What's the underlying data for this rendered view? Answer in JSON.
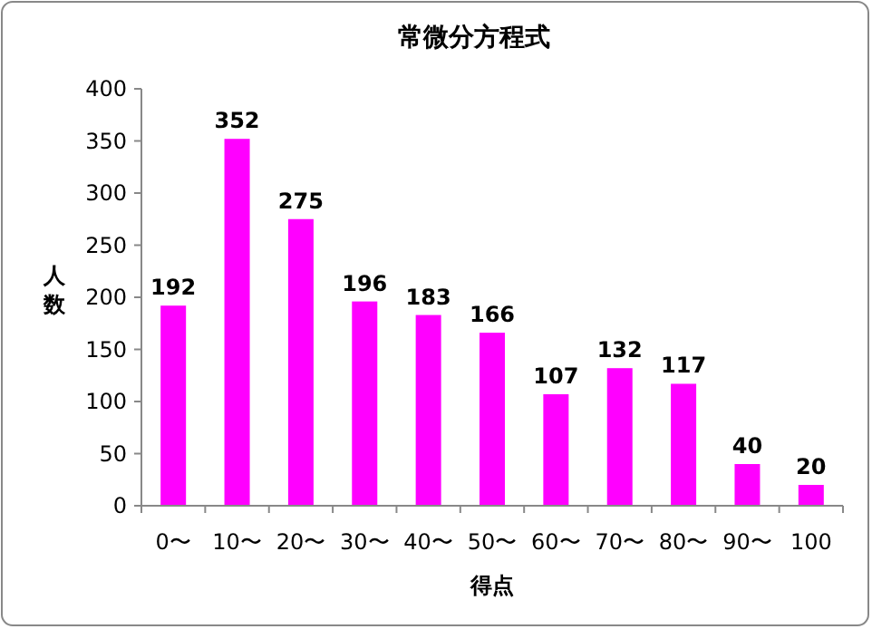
{
  "chart_data": {
    "type": "bar",
    "title": "常微分方程式",
    "xlabel": "得点",
    "ylabel": "人数",
    "categories": [
      "0〜",
      "10〜",
      "20〜",
      "30〜",
      "40〜",
      "50〜",
      "60〜",
      "70〜",
      "80〜",
      "90〜",
      "100"
    ],
    "values": [
      192,
      352,
      275,
      196,
      183,
      166,
      107,
      132,
      117,
      40,
      20
    ],
    "color": "#ff00ff",
    "ylim": [
      0,
      400
    ],
    "yticks": [
      0,
      50,
      100,
      150,
      200,
      250,
      300,
      350,
      400
    ],
    "data_labels": true
  }
}
